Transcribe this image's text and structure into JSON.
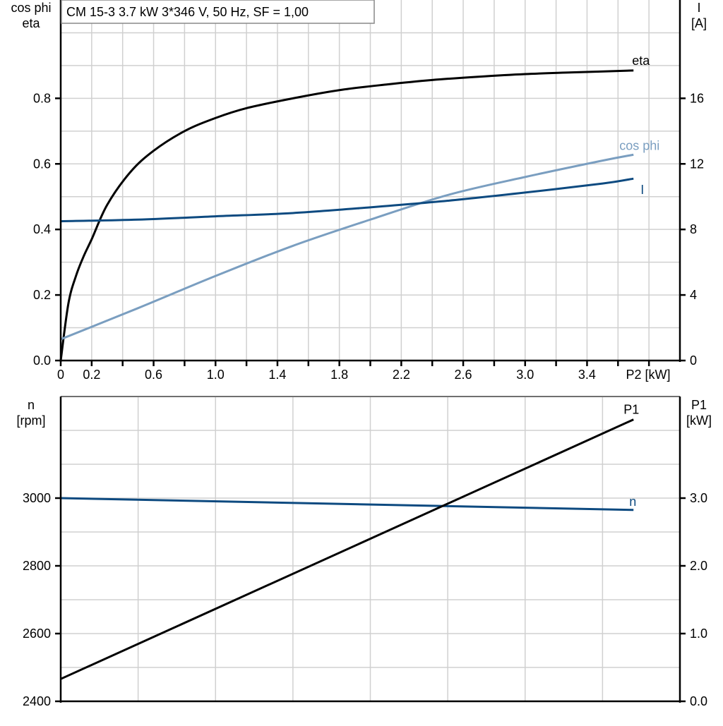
{
  "title": "CM 15-3   3.7 kW   3*346 V, 50 Hz, SF = 1,00",
  "chart_data": [
    {
      "type": "line",
      "xlabel": "P2 [kW]",
      "ylabel_left": [
        "cos phi",
        "eta"
      ],
      "ylabel_right": [
        "I",
        "[A]"
      ],
      "xlim": [
        0,
        4.0
      ],
      "ylim_left": [
        0,
        1.1
      ],
      "ylim_right": [
        0,
        22
      ],
      "grid": true,
      "x_ticks": [
        0,
        0.2,
        0.4,
        0.6,
        0.8,
        1.0,
        1.2,
        1.4,
        1.6,
        1.8,
        2.0,
        2.2,
        2.4,
        2.6,
        2.8,
        3.0,
        3.2,
        3.4,
        3.6,
        3.8
      ],
      "x_tick_labels": [
        "0",
        "0.2",
        "",
        "0.6",
        "",
        "1.0",
        "",
        "1.4",
        "",
        "1.8",
        "",
        "2.2",
        "",
        "2.6",
        "",
        "3.0",
        "",
        "3.4",
        "",
        ""
      ],
      "y_left_ticks": [
        "0.0",
        "0.2",
        "0.4",
        "0.6",
        "0.8"
      ],
      "y_right_ticks": [
        "0",
        "4",
        "8",
        "12",
        "16"
      ],
      "series": [
        {
          "name": "eta",
          "axis": "left",
          "color": "#000000",
          "x": [
            0,
            0.05,
            0.1,
            0.15,
            0.2,
            0.3,
            0.45,
            0.6,
            0.8,
            1.0,
            1.2,
            1.5,
            1.8,
            2.1,
            2.4,
            2.7,
            3.0,
            3.3,
            3.7
          ],
          "y": [
            0,
            0.175,
            0.26,
            0.32,
            0.37,
            0.475,
            0.575,
            0.64,
            0.7,
            0.74,
            0.77,
            0.8,
            0.825,
            0.842,
            0.856,
            0.866,
            0.874,
            0.879,
            0.885
          ]
        },
        {
          "name": "cos phi",
          "axis": "left",
          "color": "#7a9ec0",
          "x": [
            0,
            0.5,
            1.0,
            1.5,
            2.0,
            2.5,
            3.0,
            3.5,
            3.7
          ],
          "y": [
            0.065,
            0.16,
            0.258,
            0.35,
            0.43,
            0.505,
            0.56,
            0.61,
            0.628
          ]
        },
        {
          "name": "I",
          "axis": "right",
          "color": "#0d4a80",
          "x": [
            0,
            0.5,
            1.0,
            1.5,
            2.0,
            2.5,
            3.0,
            3.5,
            3.7
          ],
          "y": [
            8.5,
            8.6,
            8.8,
            9.0,
            9.35,
            9.75,
            10.25,
            10.8,
            11.1
          ]
        }
      ]
    },
    {
      "type": "line",
      "xlabel": "",
      "ylabel_left": [
        "n",
        "[rpm]"
      ],
      "ylabel_right": [
        "P1",
        "[kW]"
      ],
      "xlim": [
        0,
        4.0
      ],
      "ylim_left": [
        2400,
        3300
      ],
      "ylim_right": [
        0,
        4.5
      ],
      "grid": true,
      "y_left_ticks": [
        "2400",
        "2600",
        "2800",
        "3000"
      ],
      "y_right_ticks": [
        "0.0",
        "1.0",
        "2.0",
        "3.0"
      ],
      "series": [
        {
          "name": "n",
          "axis": "left",
          "color": "#0d4a80",
          "x": [
            0,
            3.7
          ],
          "y": [
            3000,
            2965
          ]
        },
        {
          "name": "P1",
          "axis": "right",
          "color": "#000000",
          "x": [
            0,
            3.7
          ],
          "y": [
            0.33,
            4.16
          ]
        }
      ]
    }
  ]
}
